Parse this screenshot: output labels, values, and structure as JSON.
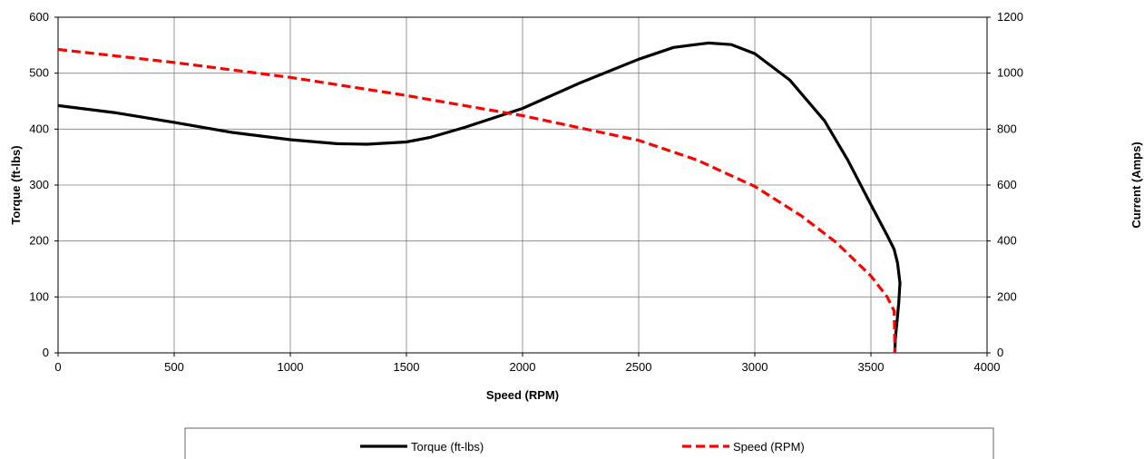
{
  "chart_data": {
    "type": "line",
    "title": "",
    "xlabel": "Speed (RPM)",
    "ylabel": "Torque (ft-lbs)",
    "y2label": "Current (Amps)",
    "xlim": [
      0,
      4000
    ],
    "ylim": [
      0,
      600
    ],
    "y2lim": [
      0,
      1200
    ],
    "x_ticks": [
      0,
      500,
      1000,
      1500,
      2000,
      2500,
      3000,
      3500,
      4000
    ],
    "y_ticks": [
      0,
      100,
      200,
      300,
      400,
      500,
      600
    ],
    "y2_ticks": [
      0,
      200,
      400,
      600,
      800,
      1000,
      1200
    ],
    "grid": true,
    "legend_position": "bottom",
    "series": [
      {
        "name": "Torque (ft-lbs)",
        "axis": "left",
        "color": "#000000",
        "style": "solid",
        "points": [
          [
            0,
            442
          ],
          [
            250,
            429
          ],
          [
            500,
            412
          ],
          [
            750,
            394
          ],
          [
            1000,
            381
          ],
          [
            1200,
            374
          ],
          [
            1330,
            373
          ],
          [
            1500,
            377
          ],
          [
            1600,
            385
          ],
          [
            1750,
            403
          ],
          [
            2000,
            437
          ],
          [
            2250,
            483
          ],
          [
            2500,
            525
          ],
          [
            2650,
            546
          ],
          [
            2800,
            554
          ],
          [
            2900,
            551
          ],
          [
            3000,
            535
          ],
          [
            3150,
            488
          ],
          [
            3300,
            415
          ],
          [
            3400,
            345
          ],
          [
            3500,
            265
          ],
          [
            3570,
            210
          ],
          [
            3600,
            185
          ],
          [
            3615,
            160
          ],
          [
            3625,
            125
          ],
          [
            3620,
            90
          ],
          [
            3612,
            55
          ],
          [
            3605,
            25
          ],
          [
            3603,
            0
          ]
        ]
      },
      {
        "name": "Speed (RPM)",
        "axis": "right",
        "color": "#ff0000",
        "style": "dashed",
        "points": [
          [
            0,
            1085
          ],
          [
            500,
            1038
          ],
          [
            1000,
            985
          ],
          [
            1500,
            920
          ],
          [
            2000,
            848
          ],
          [
            2500,
            760
          ],
          [
            2750,
            690
          ],
          [
            3000,
            595
          ],
          [
            3200,
            490
          ],
          [
            3350,
            395
          ],
          [
            3500,
            275
          ],
          [
            3570,
            200
          ],
          [
            3600,
            150
          ],
          [
            3602,
            75
          ],
          [
            3603,
            0
          ]
        ]
      }
    ]
  }
}
